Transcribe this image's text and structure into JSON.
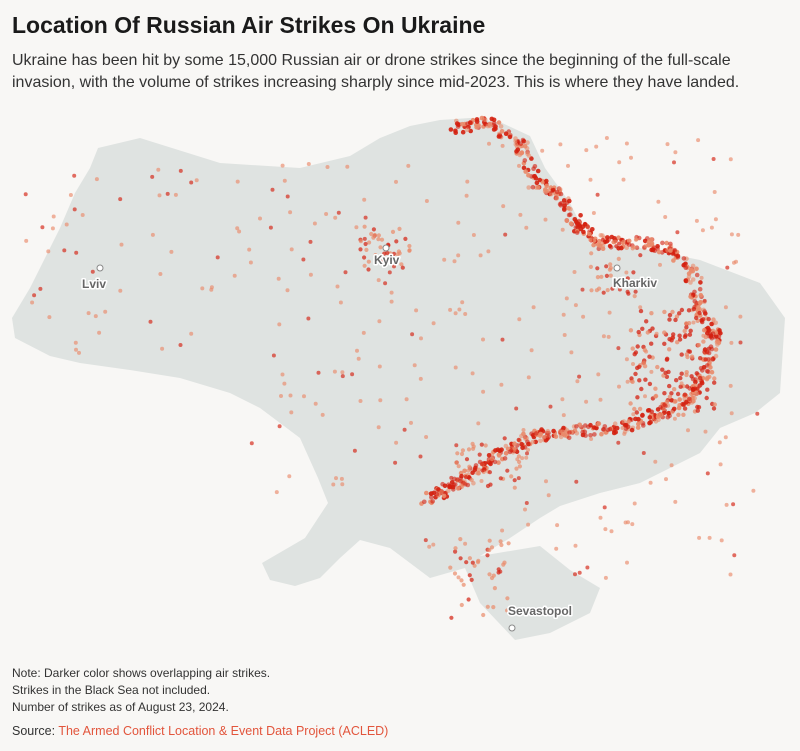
{
  "title": "Location Of Russian Air Strikes On Ukraine",
  "subtitle": "Ukraine has been hit by some 15,000 Russian air or drone strikes since the beginning of the full-scale invasion, with the volume of strikes increasing sharply since mid-2023. This is where they have landed.",
  "cities": {
    "lviv": "Lviv",
    "kyiv": "Kyiv",
    "kharkiv": "Kharkiv",
    "sevastopol": "Sevastopol"
  },
  "notes": {
    "line1": "Note: Darker color shows overlapping air strikes.",
    "line2": "Strikes in the Black Sea not included.",
    "line3": "Number of strikes as of August 23, 2024."
  },
  "source": {
    "label": "Source:",
    "link_text": "The Armed Conflict Location & Event Data Project (ACLED)"
  },
  "colors": {
    "background": "#f8f7f5",
    "land": "#dfe3e1",
    "strike_light": "#e98a6a",
    "strike_dark": "#d42010"
  }
}
